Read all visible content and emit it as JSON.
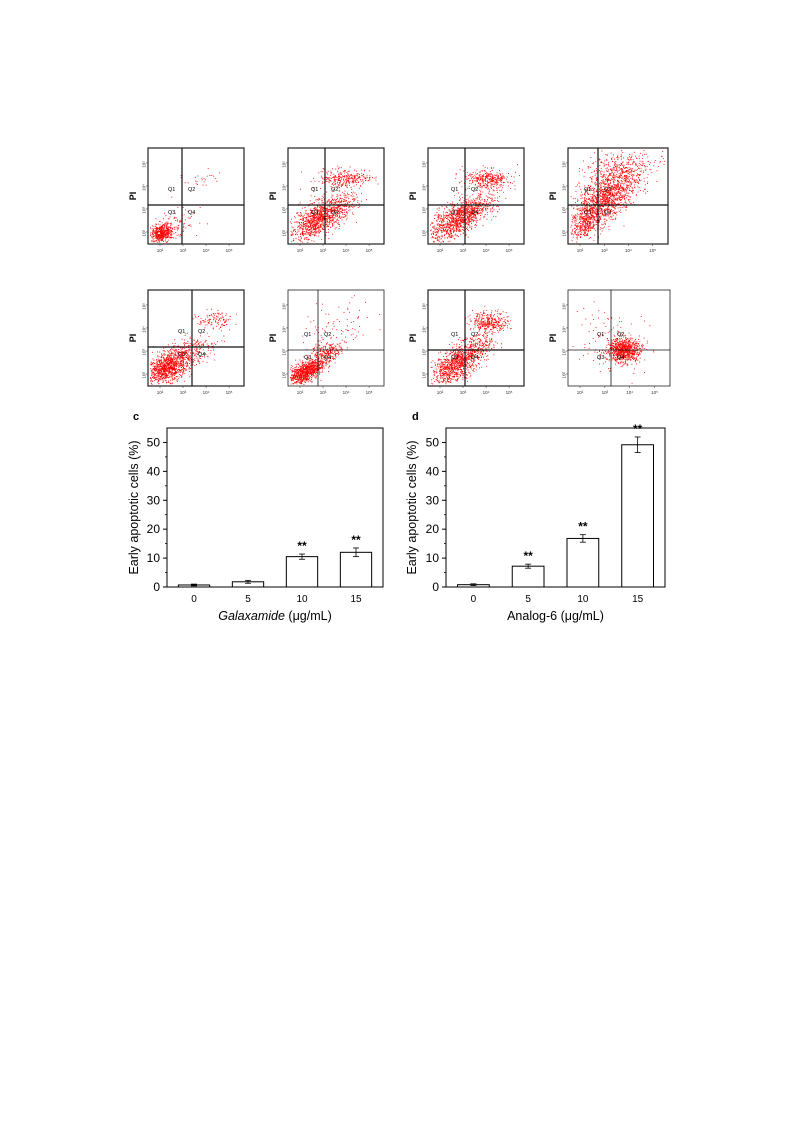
{
  "flow_panels": {
    "y_label": "PI",
    "quadrant_labels": [
      "Q1",
      "Q2",
      "Q3",
      "Q4"
    ],
    "tick_labels": [
      "10²",
      "10³",
      "10⁴",
      "10⁵"
    ],
    "dot_color": "#ff0000"
  },
  "chart_data": [
    {
      "type": "bar",
      "panel_label": "c",
      "categories": [
        "0",
        "5",
        "10",
        "15"
      ],
      "values": [
        0.7,
        1.8,
        10.5,
        12.0
      ],
      "errors": [
        0.3,
        0.5,
        0.9,
        1.5
      ],
      "significance": [
        "",
        "",
        "**",
        "**"
      ],
      "xlabel_italic": "Galaxamide",
      "xlabel_unit": "(μg/mL)",
      "ylabel": "Early apoptotic cells (%)",
      "ylim": [
        0,
        55
      ],
      "yticks": [
        0,
        10,
        20,
        30,
        40,
        50
      ],
      "grid": false
    },
    {
      "type": "bar",
      "panel_label": "d",
      "categories": [
        "0",
        "5",
        "10",
        "15"
      ],
      "values": [
        0.8,
        7.2,
        16.8,
        49.2
      ],
      "errors": [
        0.3,
        0.7,
        1.3,
        2.7
      ],
      "significance": [
        "",
        "**",
        "**",
        "**"
      ],
      "xlabel_italic": "",
      "xlabel_unit": "Analog-6 (μg/mL)",
      "ylabel": "Early apoptotic cells (%)",
      "ylim": [
        0,
        55
      ],
      "yticks": [
        0,
        10,
        20,
        30,
        40,
        50
      ],
      "grid": false
    }
  ]
}
